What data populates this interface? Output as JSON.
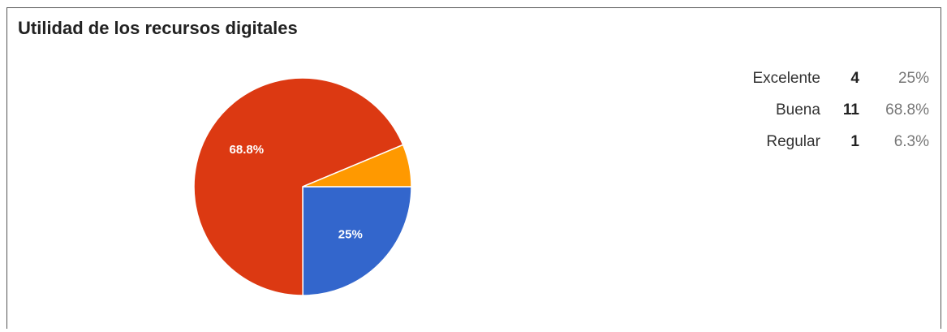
{
  "title": "Utilidad de los recursos digitales",
  "chart_data": {
    "type": "pie",
    "title": "Utilidad de los recursos digitales",
    "slices": [
      {
        "label": "Excelente",
        "count": 4,
        "percent_text": "25%",
        "percent": 25,
        "color": "#3366cc",
        "slice_label": "25%"
      },
      {
        "label": "Buena",
        "count": 11,
        "percent_text": "68.8%",
        "percent": 68.8,
        "color": "#dc3912",
        "slice_label": "68.8%"
      },
      {
        "label": "Regular",
        "count": 1,
        "percent_text": "6.3%",
        "percent": 6.3,
        "color": "#ff9900",
        "slice_label": ""
      }
    ],
    "start_angle_deg": 90,
    "direction": "clockwise"
  }
}
